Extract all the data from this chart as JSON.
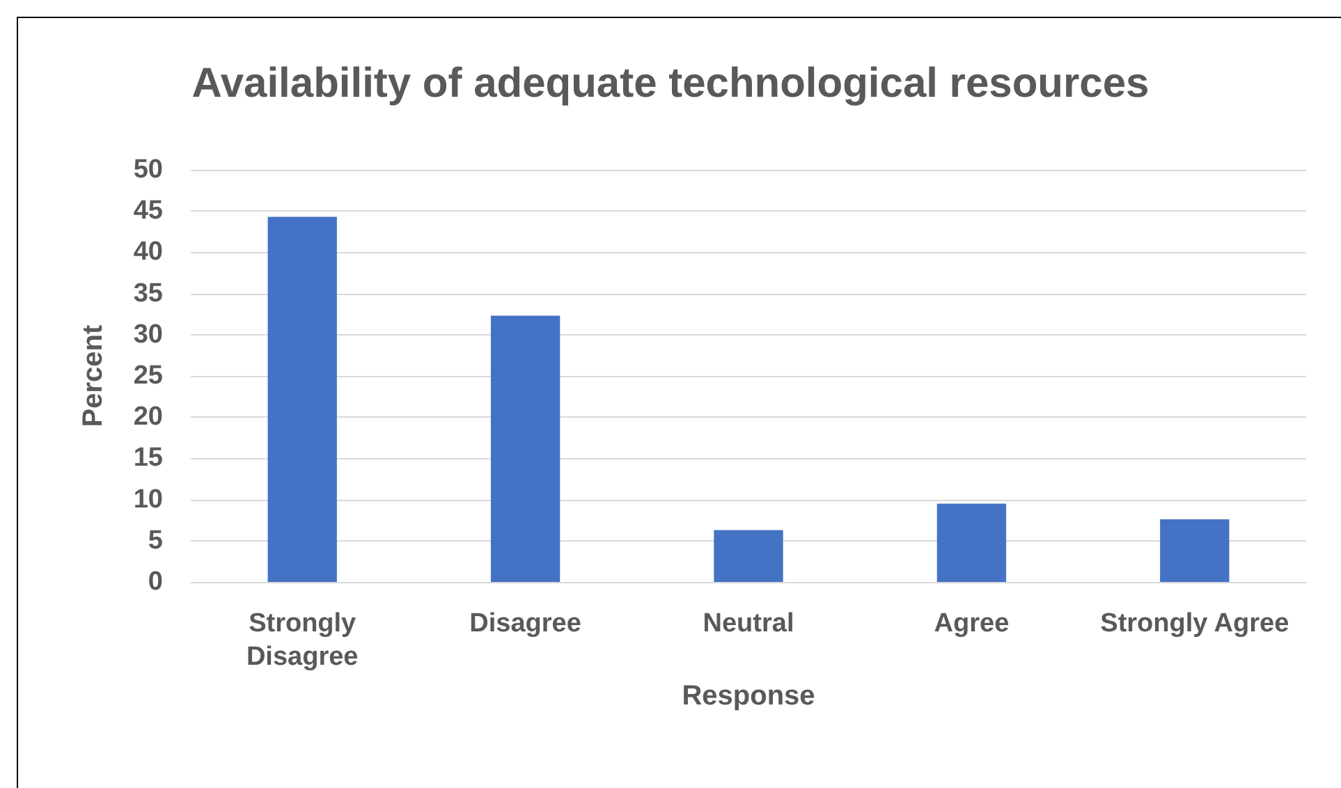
{
  "chart_data": {
    "type": "bar",
    "title": "Availability of adequate technological resources",
    "xlabel": "Response",
    "ylabel": "Percent",
    "categories": [
      "Strongly Disagree",
      "Disagree",
      "Neutral",
      "Agree",
      "Strongly Agree"
    ],
    "values": [
      44.3,
      32.3,
      6.3,
      9.5,
      7.6
    ],
    "color": "#4472c4",
    "ylim": [
      0,
      50
    ],
    "yticks": [
      0,
      5,
      10,
      15,
      20,
      25,
      30,
      35,
      40,
      45,
      50
    ],
    "grid": "y"
  }
}
